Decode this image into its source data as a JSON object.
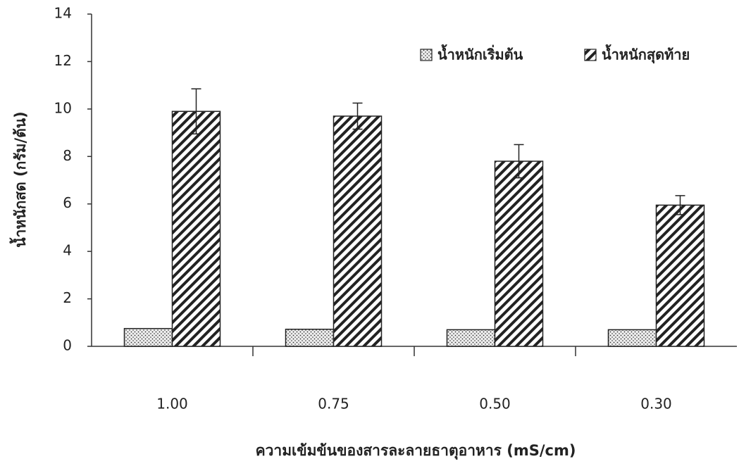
{
  "chart_data": {
    "type": "bar",
    "categories": [
      "1.00",
      "0.75",
      "0.50",
      "0.30"
    ],
    "series": [
      {
        "name": "น้ำหนักเริ่มต้น",
        "values": [
          0.75,
          0.72,
          0.7,
          0.7
        ]
      },
      {
        "name": "น้ำหนักสุดท้าย",
        "values": [
          9.9,
          9.7,
          7.8,
          5.95
        ],
        "errors": [
          0.95,
          0.55,
          0.7,
          0.4
        ]
      }
    ],
    "x_label": "ความเข้มข้นของสารละลายธาตุอาหาร (mS/cm)",
    "y_label": "น้ำหนักสด (กรัม/ต้น)",
    "ylim": [
      0,
      14
    ],
    "yticks": [
      0,
      2,
      4,
      6,
      8,
      10,
      12,
      14
    ],
    "legend": "top-right"
  }
}
